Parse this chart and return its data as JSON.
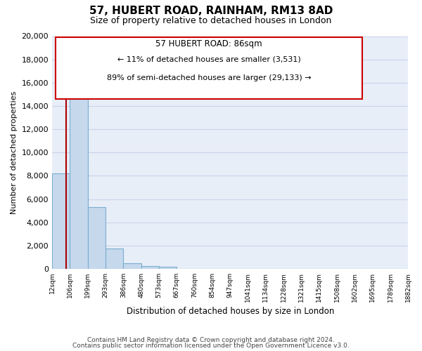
{
  "title": "57, HUBERT ROAD, RAINHAM, RM13 8AD",
  "subtitle": "Size of property relative to detached houses in London",
  "xlabel": "Distribution of detached houses by size in London",
  "ylabel": "Number of detached properties",
  "bar_color": "#c5d8ec",
  "bar_edge_color": "#7aaed0",
  "bin_labels": [
    "12sqm",
    "106sqm",
    "199sqm",
    "293sqm",
    "386sqm",
    "480sqm",
    "573sqm",
    "667sqm",
    "760sqm",
    "854sqm",
    "947sqm",
    "1041sqm",
    "1134sqm",
    "1228sqm",
    "1321sqm",
    "1415sqm",
    "1508sqm",
    "1602sqm",
    "1695sqm",
    "1789sqm",
    "1882sqm"
  ],
  "bar_heights": [
    8200,
    16500,
    5300,
    1750,
    500,
    250,
    200,
    0,
    0,
    0,
    0,
    0,
    0,
    0,
    0,
    0,
    0,
    0,
    0,
    0
  ],
  "ylim": [
    0,
    20000
  ],
  "yticks": [
    0,
    2000,
    4000,
    6000,
    8000,
    10000,
    12000,
    14000,
    16000,
    18000,
    20000
  ],
  "annotation_title": "57 HUBERT ROAD: 86sqm",
  "annotation_line1": "← 11% of detached houses are smaller (3,531)",
  "annotation_line2": "89% of semi-detached houses are larger (29,133) →",
  "property_line_color": "#aa0000",
  "annotation_box_edge_color": "#cc0000",
  "grid_color": "#c8d4e8",
  "background_color": "#e8eef8",
  "footer_line1": "Contains HM Land Registry data © Crown copyright and database right 2024.",
  "footer_line2": "Contains public sector information licensed under the Open Government Licence v3.0."
}
